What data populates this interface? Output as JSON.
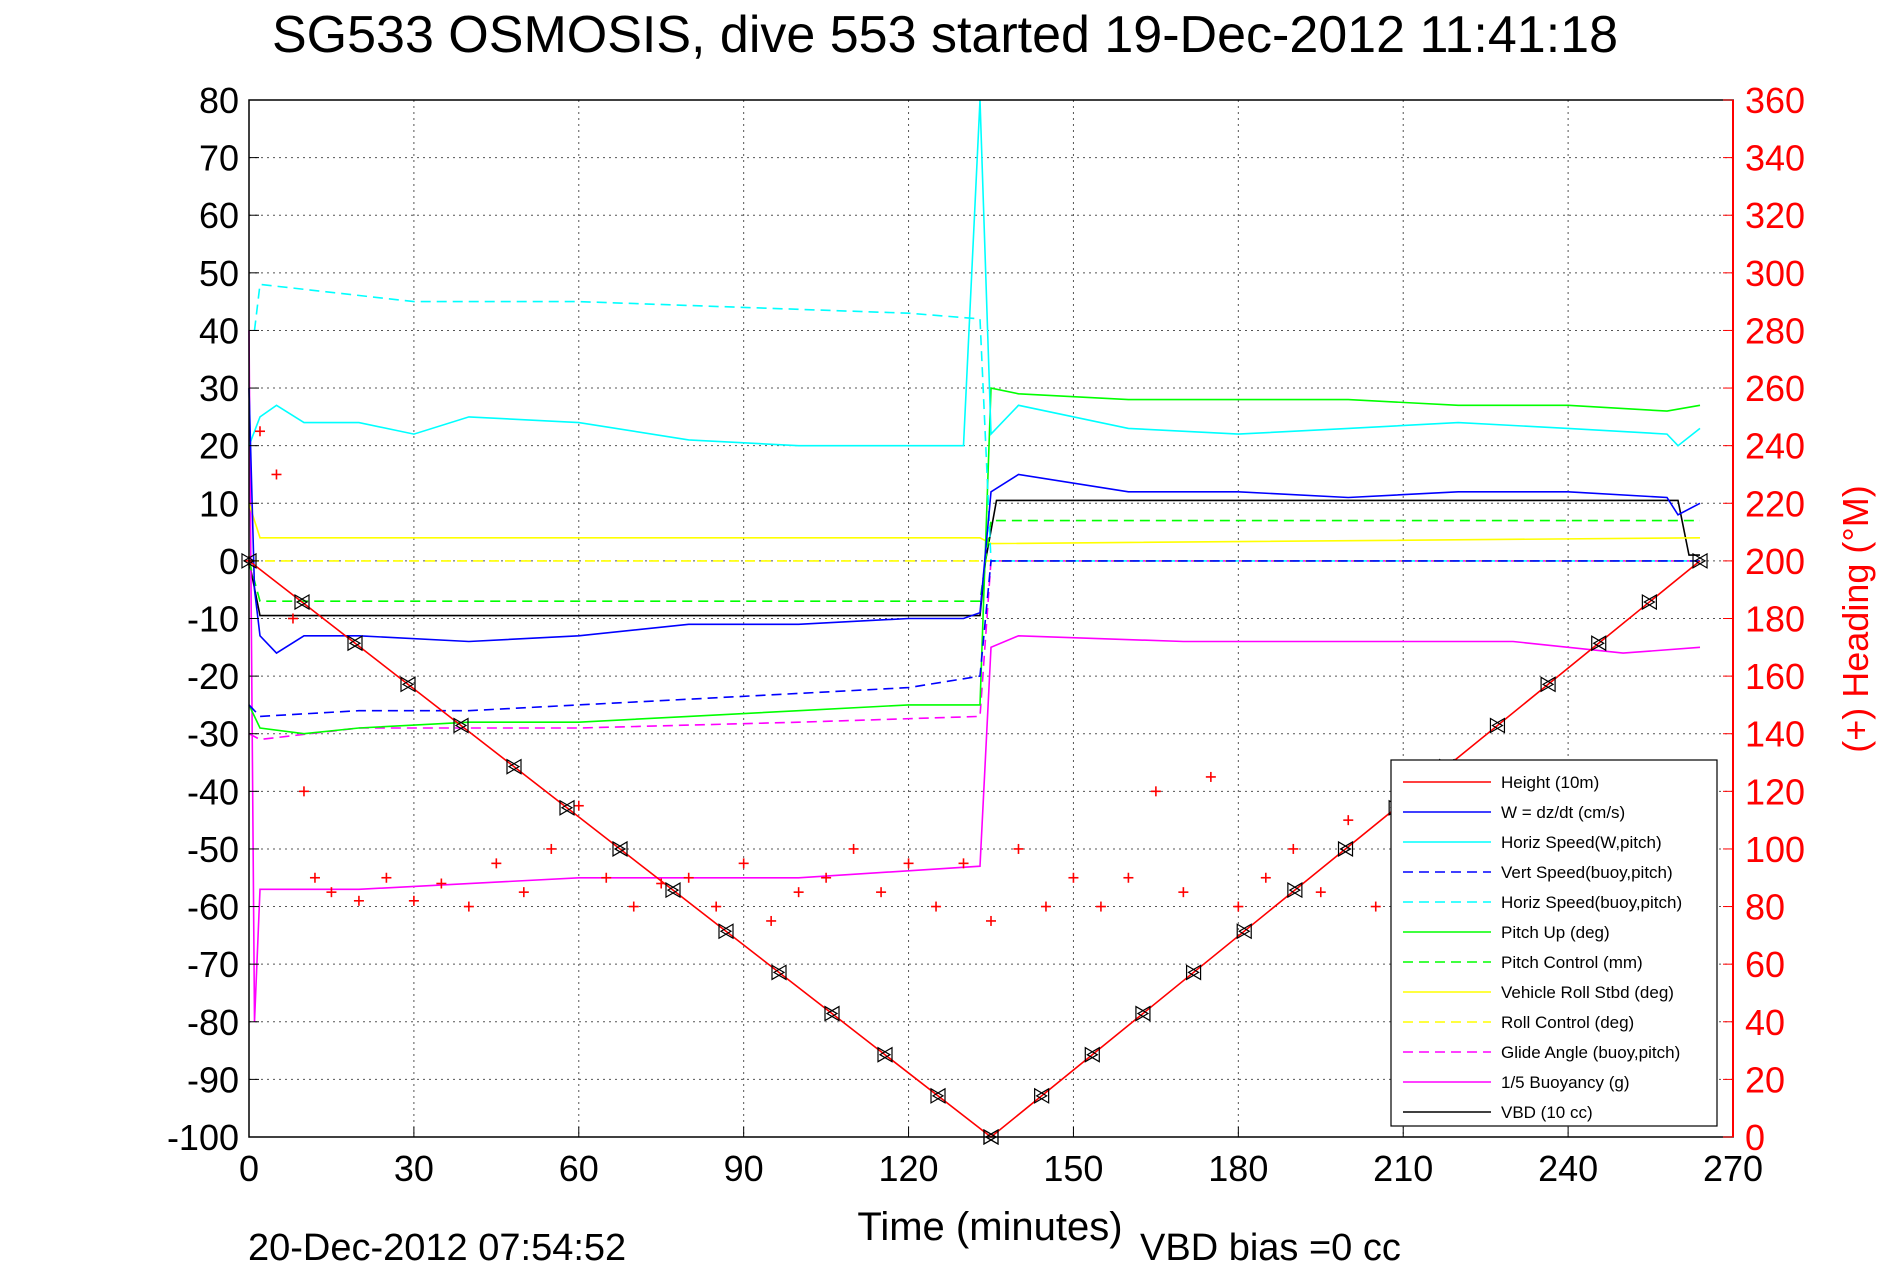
{
  "chart_data": {
    "type": "line",
    "title": "SG533 OSMOSIS, dive 553 started 19-Dec-2012 11:41:18",
    "xlabel": "Time (minutes)",
    "ylabel": "",
    "y2label": "(+) Heading (°M)",
    "xlim": [
      0,
      270
    ],
    "ylim": [
      -100,
      80
    ],
    "y2lim": [
      0,
      360
    ],
    "xticks": [
      "0",
      "30",
      "60",
      "90",
      "120",
      "150",
      "180",
      "210",
      "240",
      "270"
    ],
    "yticks": [
      "80",
      "70",
      "60",
      "50",
      "40",
      "30",
      "20",
      "10",
      "0",
      "-10",
      "-20",
      "-30",
      "-40",
      "-50",
      "-60",
      "-70",
      "-80",
      "-90",
      "-100"
    ],
    "y2ticks": [
      "360",
      "340",
      "320",
      "300",
      "280",
      "260",
      "240",
      "220",
      "200",
      "180",
      "160",
      "140",
      "120",
      "100",
      "80",
      "60",
      "40",
      "20",
      "0"
    ],
    "grid": true,
    "legend_position": "bottom-right",
    "footer_left": "20-Dec-2012 07:54:52",
    "footer_right": "VBD bias =0 cc",
    "accent_color": "#ff0000",
    "series": [
      {
        "name": "Height (10m)",
        "color": "#ff0000",
        "style": "solid",
        "marker": "triangle-pair",
        "x": [
          0,
          135,
          264
        ],
        "y": [
          0,
          -100,
          0
        ]
      },
      {
        "name": "W = dz/dt (cm/s)",
        "color": "#0000ff",
        "style": "solid",
        "x": [
          0,
          1,
          2,
          5,
          10,
          20,
          40,
          60,
          80,
          100,
          120,
          130,
          133,
          135,
          140,
          160,
          180,
          200,
          220,
          240,
          258,
          260,
          264
        ],
        "y": [
          30,
          -5,
          -13,
          -16,
          -13,
          -13,
          -14,
          -13,
          -11,
          -11,
          -10,
          -10,
          -9,
          12,
          15,
          12,
          12,
          11,
          12,
          12,
          11,
          8,
          10
        ]
      },
      {
        "name": "Horiz Speed(W,pitch)",
        "color": "#00ffff",
        "style": "solid",
        "x": [
          0,
          2,
          5,
          10,
          20,
          30,
          40,
          60,
          80,
          100,
          120,
          130,
          133,
          135,
          140,
          160,
          180,
          200,
          220,
          240,
          258,
          260,
          264
        ],
        "y": [
          20,
          25,
          27,
          24,
          24,
          22,
          25,
          24,
          21,
          20,
          20,
          20,
          80,
          22,
          27,
          23,
          22,
          23,
          24,
          23,
          22,
          20,
          23
        ]
      },
      {
        "name": "Vert Speed(buoy,pitch)",
        "color": "#0000ff",
        "style": "dashed",
        "x": [
          0,
          2,
          20,
          40,
          60,
          80,
          100,
          120,
          133,
          135,
          264
        ],
        "y": [
          -25,
          -27,
          -26,
          -26,
          -25,
          -24,
          -23,
          -22,
          -20,
          0,
          0
        ]
      },
      {
        "name": "Horiz Speed(buoy,pitch)",
        "color": "#00ffff",
        "style": "dashed",
        "x": [
          1,
          2,
          30,
          60,
          90,
          120,
          133,
          135,
          264
        ],
        "y": [
          40,
          48,
          45,
          45,
          44,
          43,
          42,
          0,
          0
        ]
      },
      {
        "name": "Pitch Up (deg)",
        "color": "#00ff00",
        "style": "solid",
        "x": [
          0,
          2,
          10,
          20,
          40,
          60,
          80,
          100,
          120,
          133,
          135,
          140,
          160,
          180,
          200,
          220,
          240,
          258,
          264
        ],
        "y": [
          -25,
          -29,
          -30,
          -29,
          -28,
          -28,
          -27,
          -26,
          -25,
          -25,
          30,
          29,
          28,
          28,
          28,
          27,
          27,
          26,
          27
        ]
      },
      {
        "name": "Pitch Control (mm)",
        "color": "#00ff00",
        "style": "dashed",
        "x": [
          0,
          2,
          133,
          135,
          264
        ],
        "y": [
          0,
          -7,
          -7,
          7,
          7
        ]
      },
      {
        "name": "Vehicle Roll Stbd (deg)",
        "color": "#ffff00",
        "style": "solid",
        "x": [
          0,
          2,
          133,
          135,
          264
        ],
        "y": [
          10,
          4,
          4,
          3,
          4
        ]
      },
      {
        "name": "Roll Control (deg)",
        "color": "#ffff00",
        "style": "dashed",
        "x": [
          0,
          2,
          133,
          135,
          264
        ],
        "y": [
          0,
          0,
          0,
          0,
          0
        ]
      },
      {
        "name": "Glide Angle (buoy,pitch)",
        "color": "#ff00ff",
        "style": "dashed",
        "x": [
          0,
          2,
          20,
          60,
          100,
          133,
          135,
          264
        ],
        "y": [
          -30,
          -31,
          -29,
          -29,
          -28,
          -27,
          0,
          0
        ]
      },
      {
        "name": "1/5 Buoyancy (g)",
        "color": "#ff00ff",
        "style": "solid",
        "x": [
          0,
          1,
          2,
          20,
          60,
          100,
          133,
          135,
          140,
          170,
          200,
          230,
          250,
          264
        ],
        "y": [
          40,
          -80,
          -57,
          -57,
          -55,
          -55,
          -53,
          -15,
          -13,
          -14,
          -14,
          -14,
          -16,
          -15
        ]
      },
      {
        "name": "VBD (10 cc)",
        "color": "#000000",
        "style": "solid",
        "x": [
          0,
          2,
          133,
          134,
          136,
          260,
          262,
          264
        ],
        "y": [
          0,
          -9.5,
          -9.5,
          0,
          10.5,
          10.5,
          1,
          1
        ]
      }
    ],
    "heading_series": {
      "axis": "right",
      "color": "#ff0000",
      "marker": "plus",
      "x": [
        0,
        2,
        5,
        8,
        10,
        12,
        15,
        20,
        25,
        30,
        35,
        40,
        45,
        50,
        55,
        60,
        65,
        70,
        75,
        80,
        85,
        90,
        95,
        100,
        105,
        110,
        115,
        120,
        125,
        130,
        135,
        140,
        145,
        150,
        155,
        160,
        165,
        170,
        175,
        180,
        185,
        190,
        195,
        200,
        205,
        210
      ],
      "y": [
        200,
        245,
        230,
        180,
        120,
        90,
        85,
        82,
        90,
        82,
        88,
        80,
        95,
        85,
        100,
        115,
        90,
        80,
        88,
        90,
        80,
        95,
        75,
        85,
        90,
        100,
        85,
        95,
        80,
        95,
        75,
        100,
        80,
        90,
        80,
        90,
        120,
        85,
        125,
        80,
        90,
        100,
        85,
        110,
        80,
        100
      ]
    },
    "legend": [
      "Height (10m)",
      "W = dz/dt (cm/s)",
      "Horiz Speed(W,pitch)",
      "Vert Speed(buoy,pitch)",
      "Horiz Speed(buoy,pitch)",
      "Pitch Up (deg)",
      "Pitch Control (mm)",
      "Vehicle Roll Stbd (deg)",
      "Roll Control (deg)",
      "Glide Angle (buoy,pitch)",
      "1/5 Buoyancy (g)",
      "VBD (10 cc)"
    ]
  }
}
